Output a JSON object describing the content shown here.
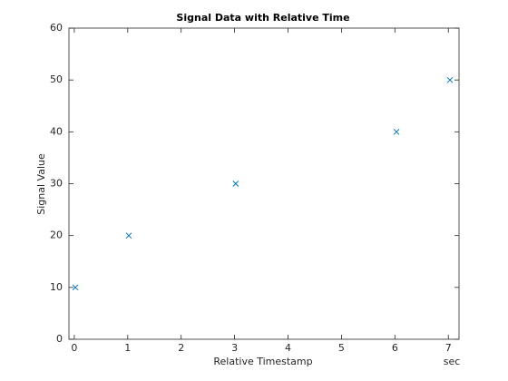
{
  "chart_data": {
    "type": "scatter",
    "title": "Signal Data with Relative Time",
    "x_label": "Relative Timestamp",
    "y_label": "Signal Value",
    "x_unit": "sec",
    "series": [
      {
        "color": "#0072bd",
        "x": [
          0.02,
          1.02,
          3.02,
          6.03,
          7.03
        ],
        "values": [
          10,
          20,
          30,
          40,
          50
        ]
      }
    ],
    "xlim": [
      -0.1,
      7.2
    ],
    "xticks": [
      0,
      1,
      2,
      3,
      4,
      5,
      6,
      7
    ],
    "ylim": [
      0,
      60
    ],
    "yticks": [
      0,
      10,
      20,
      30,
      40,
      50,
      60
    ]
  }
}
